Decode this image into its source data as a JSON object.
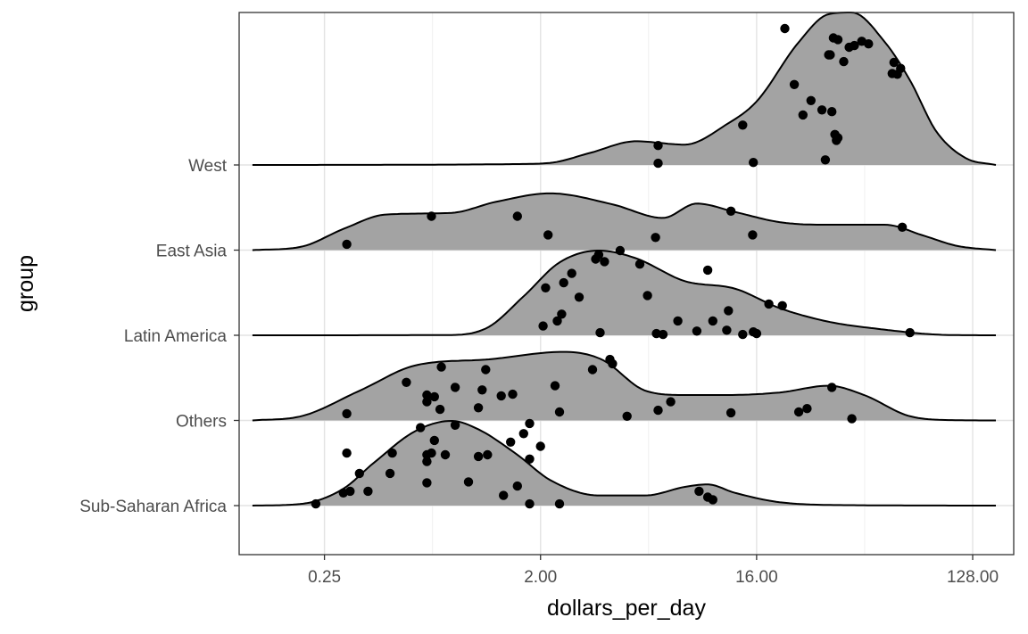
{
  "chart_data": {
    "type": "ridgeline",
    "title": "",
    "xlabel": "dollars_per_day",
    "ylabel": "group",
    "x_scale": "log2",
    "xlim": [
      0.11,
      190
    ],
    "x_ticks": [
      0.25,
      2,
      16,
      128
    ],
    "x_tick_labels": [
      "0.25",
      "2.00",
      "16.00",
      "128.00"
    ],
    "groups": [
      "Sub-Saharan Africa",
      "Others",
      "Latin America",
      "East Asia",
      "West"
    ],
    "density_domain": [
      0.125,
      160
    ],
    "fill_color": "#a3a3a3",
    "series": [
      {
        "name": "Sub-Saharan Africa",
        "density": [
          [
            0.125,
            0
          ],
          [
            0.2,
            0.02
          ],
          [
            0.3,
            0.2
          ],
          [
            0.4,
            0.5
          ],
          [
            0.6,
            0.88
          ],
          [
            0.85,
            1.0
          ],
          [
            1.1,
            0.9
          ],
          [
            1.6,
            0.6
          ],
          [
            2.2,
            0.3
          ],
          [
            3.5,
            0.12
          ],
          [
            5.5,
            0.12
          ],
          [
            8,
            0.22
          ],
          [
            10,
            0.25
          ],
          [
            13,
            0.15
          ],
          [
            20,
            0.04
          ],
          [
            40,
            0.005
          ],
          [
            160,
            0
          ]
        ],
        "points": [
          [
            0.23,
            0.02
          ],
          [
            0.3,
            0.15
          ],
          [
            0.32,
            0.17
          ],
          [
            0.38,
            0.17
          ],
          [
            0.35,
            0.38
          ],
          [
            0.47,
            0.38
          ],
          [
            0.67,
            0.27
          ],
          [
            0.67,
            0.52
          ],
          [
            0.67,
            0.6
          ],
          [
            0.7,
            0.62
          ],
          [
            0.8,
            0.6
          ],
          [
            0.88,
            0.95
          ],
          [
            0.72,
            0.77
          ],
          [
            0.48,
            0.62
          ],
          [
            0.63,
            0.92
          ],
          [
            1.0,
            0.28
          ],
          [
            1.2,
            0.6
          ],
          [
            1.6,
            0.23
          ],
          [
            1.4,
            0.12
          ],
          [
            1.8,
            0.02
          ],
          [
            2.4,
            0.02
          ],
          [
            1.5,
            0.75
          ],
          [
            1.7,
            0.85
          ],
          [
            1.8,
            0.97
          ],
          [
            2.0,
            0.7
          ],
          [
            1.1,
            0.58
          ],
          [
            0.31,
            0.62
          ],
          [
            9.2,
            0.17
          ],
          [
            10,
            0.1
          ],
          [
            10.5,
            0.07
          ],
          [
            1.8,
            0.55
          ]
        ]
      },
      {
        "name": "Others",
        "density": [
          [
            0.125,
            0
          ],
          [
            0.2,
            0.05
          ],
          [
            0.35,
            0.35
          ],
          [
            0.6,
            0.65
          ],
          [
            1.2,
            0.72
          ],
          [
            2.5,
            0.81
          ],
          [
            3.6,
            0.72
          ],
          [
            5.5,
            0.35
          ],
          [
            8,
            0.3
          ],
          [
            12,
            0.3
          ],
          [
            20,
            0.33
          ],
          [
            32,
            0.41
          ],
          [
            45,
            0.3
          ],
          [
            70,
            0.05
          ],
          [
            110,
            0.003
          ],
          [
            160,
            0
          ]
        ],
        "points": [
          [
            0.31,
            0.08
          ],
          [
            0.55,
            0.45
          ],
          [
            0.67,
            0.3
          ],
          [
            0.67,
            0.22
          ],
          [
            0.76,
            0.13
          ],
          [
            0.77,
            0.63
          ],
          [
            0.72,
            0.28
          ],
          [
            0.88,
            0.39
          ],
          [
            1.18,
            0.6
          ],
          [
            1.14,
            0.36
          ],
          [
            1.37,
            0.29
          ],
          [
            1.53,
            0.31
          ],
          [
            1.1,
            0.15
          ],
          [
            2.4,
            0.1
          ],
          [
            2.3,
            0.41
          ],
          [
            3.3,
            0.6
          ],
          [
            3.9,
            0.72
          ],
          [
            4.0,
            0.67
          ],
          [
            4.6,
            0.05
          ],
          [
            6.2,
            0.12
          ],
          [
            7.0,
            0.22
          ],
          [
            12.5,
            0.09
          ],
          [
            24,
            0.1
          ],
          [
            26,
            0.14
          ],
          [
            33,
            0.39
          ],
          [
            40,
            0.02
          ]
        ]
      },
      {
        "name": "Latin America",
        "density": [
          [
            0.125,
            0
          ],
          [
            0.8,
            0.003
          ],
          [
            1.2,
            0.09
          ],
          [
            1.7,
            0.46
          ],
          [
            2.4,
            0.86
          ],
          [
            3.5,
            1.0
          ],
          [
            5.0,
            0.91
          ],
          [
            8,
            0.64
          ],
          [
            13,
            0.55
          ],
          [
            20,
            0.32
          ],
          [
            32,
            0.16
          ],
          [
            50,
            0.08
          ],
          [
            100,
            0.004
          ],
          [
            160,
            0
          ]
        ],
        "points": [
          [
            2.05,
            0.11
          ],
          [
            2.45,
            0.25
          ],
          [
            2.35,
            0.17
          ],
          [
            2.1,
            0.56
          ],
          [
            2.7,
            0.73
          ],
          [
            2.5,
            0.62
          ],
          [
            2.9,
            0.45
          ],
          [
            3.4,
            0.9
          ],
          [
            3.7,
            0.87
          ],
          [
            3.5,
            0.95
          ],
          [
            3.55,
            0.03
          ],
          [
            4.3,
            1.0
          ],
          [
            5.2,
            0.84
          ],
          [
            5.6,
            0.47
          ],
          [
            6.1,
            0.02
          ],
          [
            6.5,
            0.01
          ],
          [
            7.5,
            0.17
          ],
          [
            9.0,
            0.05
          ],
          [
            10.5,
            0.17
          ],
          [
            10.0,
            0.77
          ],
          [
            12.2,
            0.29
          ],
          [
            12.0,
            0.06
          ],
          [
            14.0,
            0.01
          ],
          [
            15.5,
            0.04
          ],
          [
            16.0,
            0.02
          ],
          [
            18.0,
            0.37
          ],
          [
            20.5,
            0.35
          ],
          [
            70,
            0.03
          ]
        ]
      },
      {
        "name": "East Asia",
        "density": [
          [
            0.125,
            0
          ],
          [
            0.2,
            0.04
          ],
          [
            0.3,
            0.25
          ],
          [
            0.45,
            0.42
          ],
          [
            0.85,
            0.44
          ],
          [
            1.3,
            0.57
          ],
          [
            2.2,
            0.67
          ],
          [
            4.0,
            0.54
          ],
          [
            6.5,
            0.38
          ],
          [
            9,
            0.55
          ],
          [
            13,
            0.45
          ],
          [
            20,
            0.33
          ],
          [
            30,
            0.3
          ],
          [
            55,
            0.3
          ],
          [
            80,
            0.17
          ],
          [
            110,
            0.05
          ],
          [
            160,
            0
          ]
        ],
        "points": [
          [
            0.31,
            0.07
          ],
          [
            0.7,
            0.4
          ],
          [
            1.6,
            0.4
          ],
          [
            2.15,
            0.18
          ],
          [
            6.05,
            0.15
          ],
          [
            12.5,
            0.46
          ],
          [
            15.4,
            0.18
          ],
          [
            65,
            0.27
          ]
        ]
      },
      {
        "name": "West",
        "density": [
          [
            0.125,
            0
          ],
          [
            0.5,
            0.002
          ],
          [
            1.5,
            0.01
          ],
          [
            2.2,
            0.025
          ],
          [
            3.2,
            0.14
          ],
          [
            5.0,
            0.28
          ],
          [
            8,
            0.24
          ],
          [
            12,
            0.48
          ],
          [
            16,
            0.75
          ],
          [
            24,
            1.45
          ],
          [
            32,
            1.78
          ],
          [
            40,
            1.8
          ],
          [
            55,
            1.45
          ],
          [
            70,
            1.0
          ],
          [
            90,
            0.4
          ],
          [
            120,
            0.08
          ],
          [
            160,
            0
          ]
        ],
        "points": [
          [
            6.2,
            0.02
          ],
          [
            6.2,
            0.23
          ],
          [
            14,
            0.47
          ],
          [
            15.5,
            0.03
          ],
          [
            23,
            0.95
          ],
          [
            25,
            0.59
          ],
          [
            30,
            0.65
          ],
          [
            31,
            0.06
          ],
          [
            32,
            1.3
          ],
          [
            33,
            0.63
          ],
          [
            32.5,
            1.3
          ],
          [
            33.5,
            1.5
          ],
          [
            35,
            1.48
          ],
          [
            34,
            0.36
          ],
          [
            34.5,
            0.29
          ],
          [
            37,
            1.22
          ],
          [
            39,
            1.39
          ],
          [
            41,
            1.41
          ],
          [
            44,
            1.46
          ],
          [
            47,
            1.43
          ],
          [
            59,
            1.08
          ],
          [
            60,
            1.21
          ],
          [
            62,
            1.07
          ],
          [
            64,
            1.14
          ],
          [
            35,
            0.32
          ],
          [
            21,
            1.61
          ],
          [
            27,
            0.76
          ]
        ]
      }
    ]
  }
}
